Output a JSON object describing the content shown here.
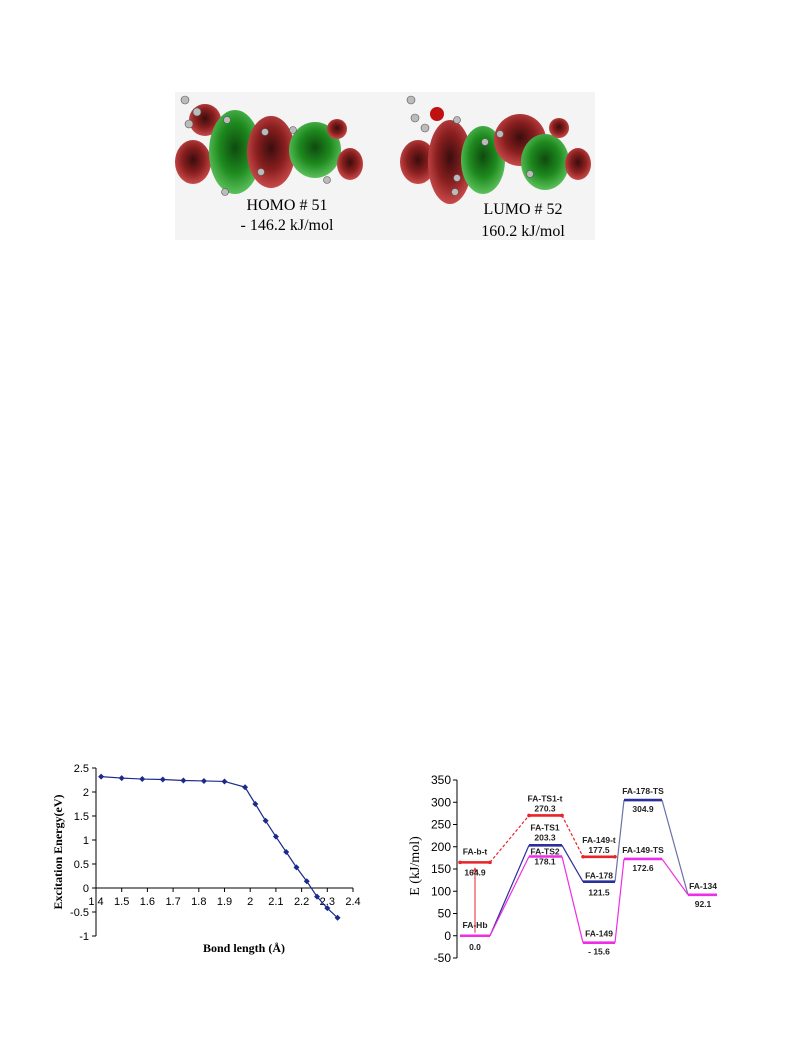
{
  "orbitals": {
    "homo": {
      "label": "HOMO # 51",
      "energy": "- 146.2 kJ/mol"
    },
    "lumo": {
      "label": "LUMO # 52",
      "energy": "160.2 kJ/mol"
    }
  },
  "chart_data": [
    {
      "type": "line",
      "xlabel": "Bond length (Å)",
      "ylabel": "Excitation Energy(eV)",
      "xlim": [
        1.4,
        2.4
      ],
      "ylim": [
        -1,
        2.5
      ],
      "xticks": [
        "1.4",
        "1.5",
        "1.6",
        "1.7",
        "1.8",
        "1.9",
        "2",
        "2.1",
        "2.2",
        "2.3",
        "2.4"
      ],
      "yticks": [
        "-1",
        "-0.5",
        "0",
        "0.5",
        "1",
        "1.5",
        "2",
        "2.5"
      ],
      "color": "#1c2a8c",
      "x": [
        1.42,
        1.5,
        1.58,
        1.66,
        1.74,
        1.82,
        1.9,
        1.98,
        2.02,
        2.06,
        2.1,
        2.14,
        2.18,
        2.22,
        2.26,
        2.3,
        2.34
      ],
      "y": [
        2.32,
        2.29,
        2.27,
        2.26,
        2.24,
        2.23,
        2.22,
        2.1,
        1.75,
        1.4,
        1.07,
        0.75,
        0.43,
        0.14,
        -0.18,
        -0.42,
        -0.62
      ]
    },
    {
      "type": "energy-diagram",
      "ylabel": "E (kJ/mol)",
      "ylim": [
        -50,
        350
      ],
      "yticks": [
        "-50",
        "0",
        "50",
        "100",
        "150",
        "200",
        "250",
        "300",
        "350"
      ],
      "colors": {
        "red": "#e8232a",
        "blue": "#2b2f9a",
        "magenta": "#ee2de6",
        "slate": "#6a72a8"
      },
      "levels": [
        {
          "name": "FA-Hb",
          "value_label": "0.0",
          "value": 0,
          "pos": 0,
          "color": "magenta"
        },
        {
          "name": "FA-b-t",
          "value_label": "164.9",
          "value": 164.9,
          "pos": 0,
          "color": "red"
        },
        {
          "name": "FA-TS1-t",
          "value_label": "270.3",
          "value": 270.3,
          "pos": 1,
          "color": "red"
        },
        {
          "name": "FA-TS1",
          "value_label": "203.3",
          "value": 203.3,
          "pos": 1,
          "color": "blue"
        },
        {
          "name": "FA-TS2",
          "value_label": "178.1",
          "value": 178.1,
          "pos": 1,
          "color": "magenta"
        },
        {
          "name": "FA-149-t",
          "value_label": "177.5",
          "value": 177.5,
          "pos": 2,
          "color": "red"
        },
        {
          "name": "FA-178",
          "value_label": "121.5",
          "value": 121.5,
          "pos": 2,
          "color": "blue"
        },
        {
          "name": "FA-149",
          "value_label": "- 15.6",
          "value": -15.6,
          "pos": 2,
          "color": "magenta"
        },
        {
          "name": "FA-178-TS",
          "value_label": "304.9",
          "value": 304.9,
          "pos": 3,
          "color": "blue"
        },
        {
          "name": "FA-149-TS",
          "value_label": "172.6",
          "value": 172.6,
          "pos": 3,
          "color": "magenta"
        },
        {
          "name": "FA-134",
          "value_label": "92.1",
          "value": 92.1,
          "pos": 4,
          "color": "magenta"
        }
      ]
    }
  ]
}
